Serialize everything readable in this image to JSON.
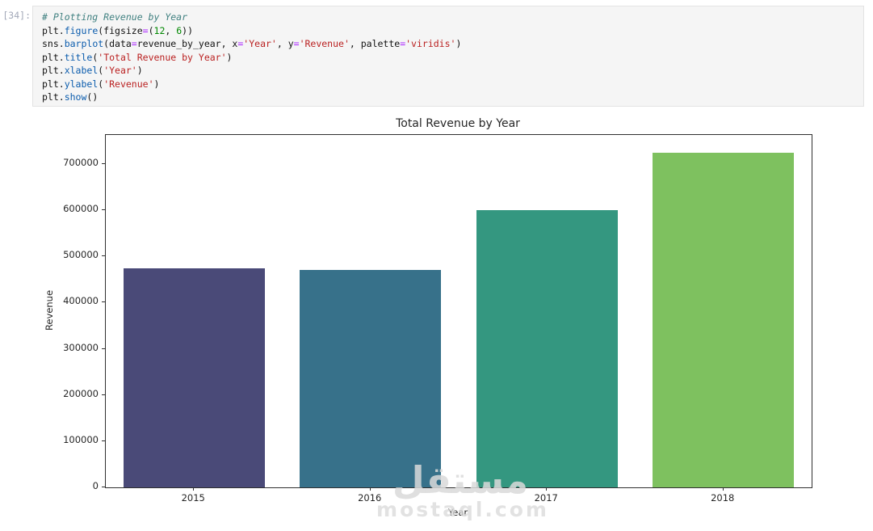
{
  "notebook": {
    "execution_count": "[34]:",
    "code_lines": [
      [
        {
          "t": "# Plotting Revenue by Year",
          "c": "comment"
        }
      ],
      [
        {
          "t": "plt.",
          "c": "plain"
        },
        {
          "t": "figure",
          "c": "func"
        },
        {
          "t": "(figsize",
          "c": "plain"
        },
        {
          "t": "=",
          "c": "op"
        },
        {
          "t": "(",
          "c": "plain"
        },
        {
          "t": "12",
          "c": "num"
        },
        {
          "t": ", ",
          "c": "plain"
        },
        {
          "t": "6",
          "c": "num"
        },
        {
          "t": "))",
          "c": "plain"
        }
      ],
      [
        {
          "t": "sns.",
          "c": "plain"
        },
        {
          "t": "barplot",
          "c": "func"
        },
        {
          "t": "(data",
          "c": "plain"
        },
        {
          "t": "=",
          "c": "op"
        },
        {
          "t": "revenue_by_year, x",
          "c": "plain"
        },
        {
          "t": "=",
          "c": "op"
        },
        {
          "t": "'Year'",
          "c": "str"
        },
        {
          "t": ", y",
          "c": "plain"
        },
        {
          "t": "=",
          "c": "op"
        },
        {
          "t": "'Revenue'",
          "c": "str"
        },
        {
          "t": ", palette",
          "c": "plain"
        },
        {
          "t": "=",
          "c": "op"
        },
        {
          "t": "'viridis'",
          "c": "str"
        },
        {
          "t": ")",
          "c": "plain"
        }
      ],
      [
        {
          "t": "plt.",
          "c": "plain"
        },
        {
          "t": "title",
          "c": "func"
        },
        {
          "t": "(",
          "c": "plain"
        },
        {
          "t": "'Total Revenue by Year'",
          "c": "str"
        },
        {
          "t": ")",
          "c": "plain"
        }
      ],
      [
        {
          "t": "plt.",
          "c": "plain"
        },
        {
          "t": "xlabel",
          "c": "func"
        },
        {
          "t": "(",
          "c": "plain"
        },
        {
          "t": "'Year'",
          "c": "str"
        },
        {
          "t": ")",
          "c": "plain"
        }
      ],
      [
        {
          "t": "plt.",
          "c": "plain"
        },
        {
          "t": "ylabel",
          "c": "func"
        },
        {
          "t": "(",
          "c": "plain"
        },
        {
          "t": "'Revenue'",
          "c": "str"
        },
        {
          "t": ")",
          "c": "plain"
        }
      ],
      [
        {
          "t": "plt.",
          "c": "plain"
        },
        {
          "t": "show",
          "c": "func"
        },
        {
          "t": "()",
          "c": "plain"
        }
      ]
    ]
  },
  "chart_data": {
    "type": "bar",
    "title": "Total Revenue by Year",
    "xlabel": "Year",
    "ylabel": "Revenue",
    "categories": [
      "2015",
      "2016",
      "2017",
      "2018"
    ],
    "values": [
      475000,
      470000,
      600000,
      725000
    ],
    "bar_colors": [
      "#4a4a78",
      "#37718a",
      "#349780",
      "#7ec15f"
    ],
    "yticks": [
      0,
      100000,
      200000,
      300000,
      400000,
      500000,
      600000,
      700000
    ],
    "ylim": [
      0,
      763000
    ],
    "grid": false,
    "legend": false,
    "bar_width_fraction": 0.8
  },
  "watermark": {
    "arabic_text": "مستقل",
    "site_text": "mostaql.com"
  }
}
